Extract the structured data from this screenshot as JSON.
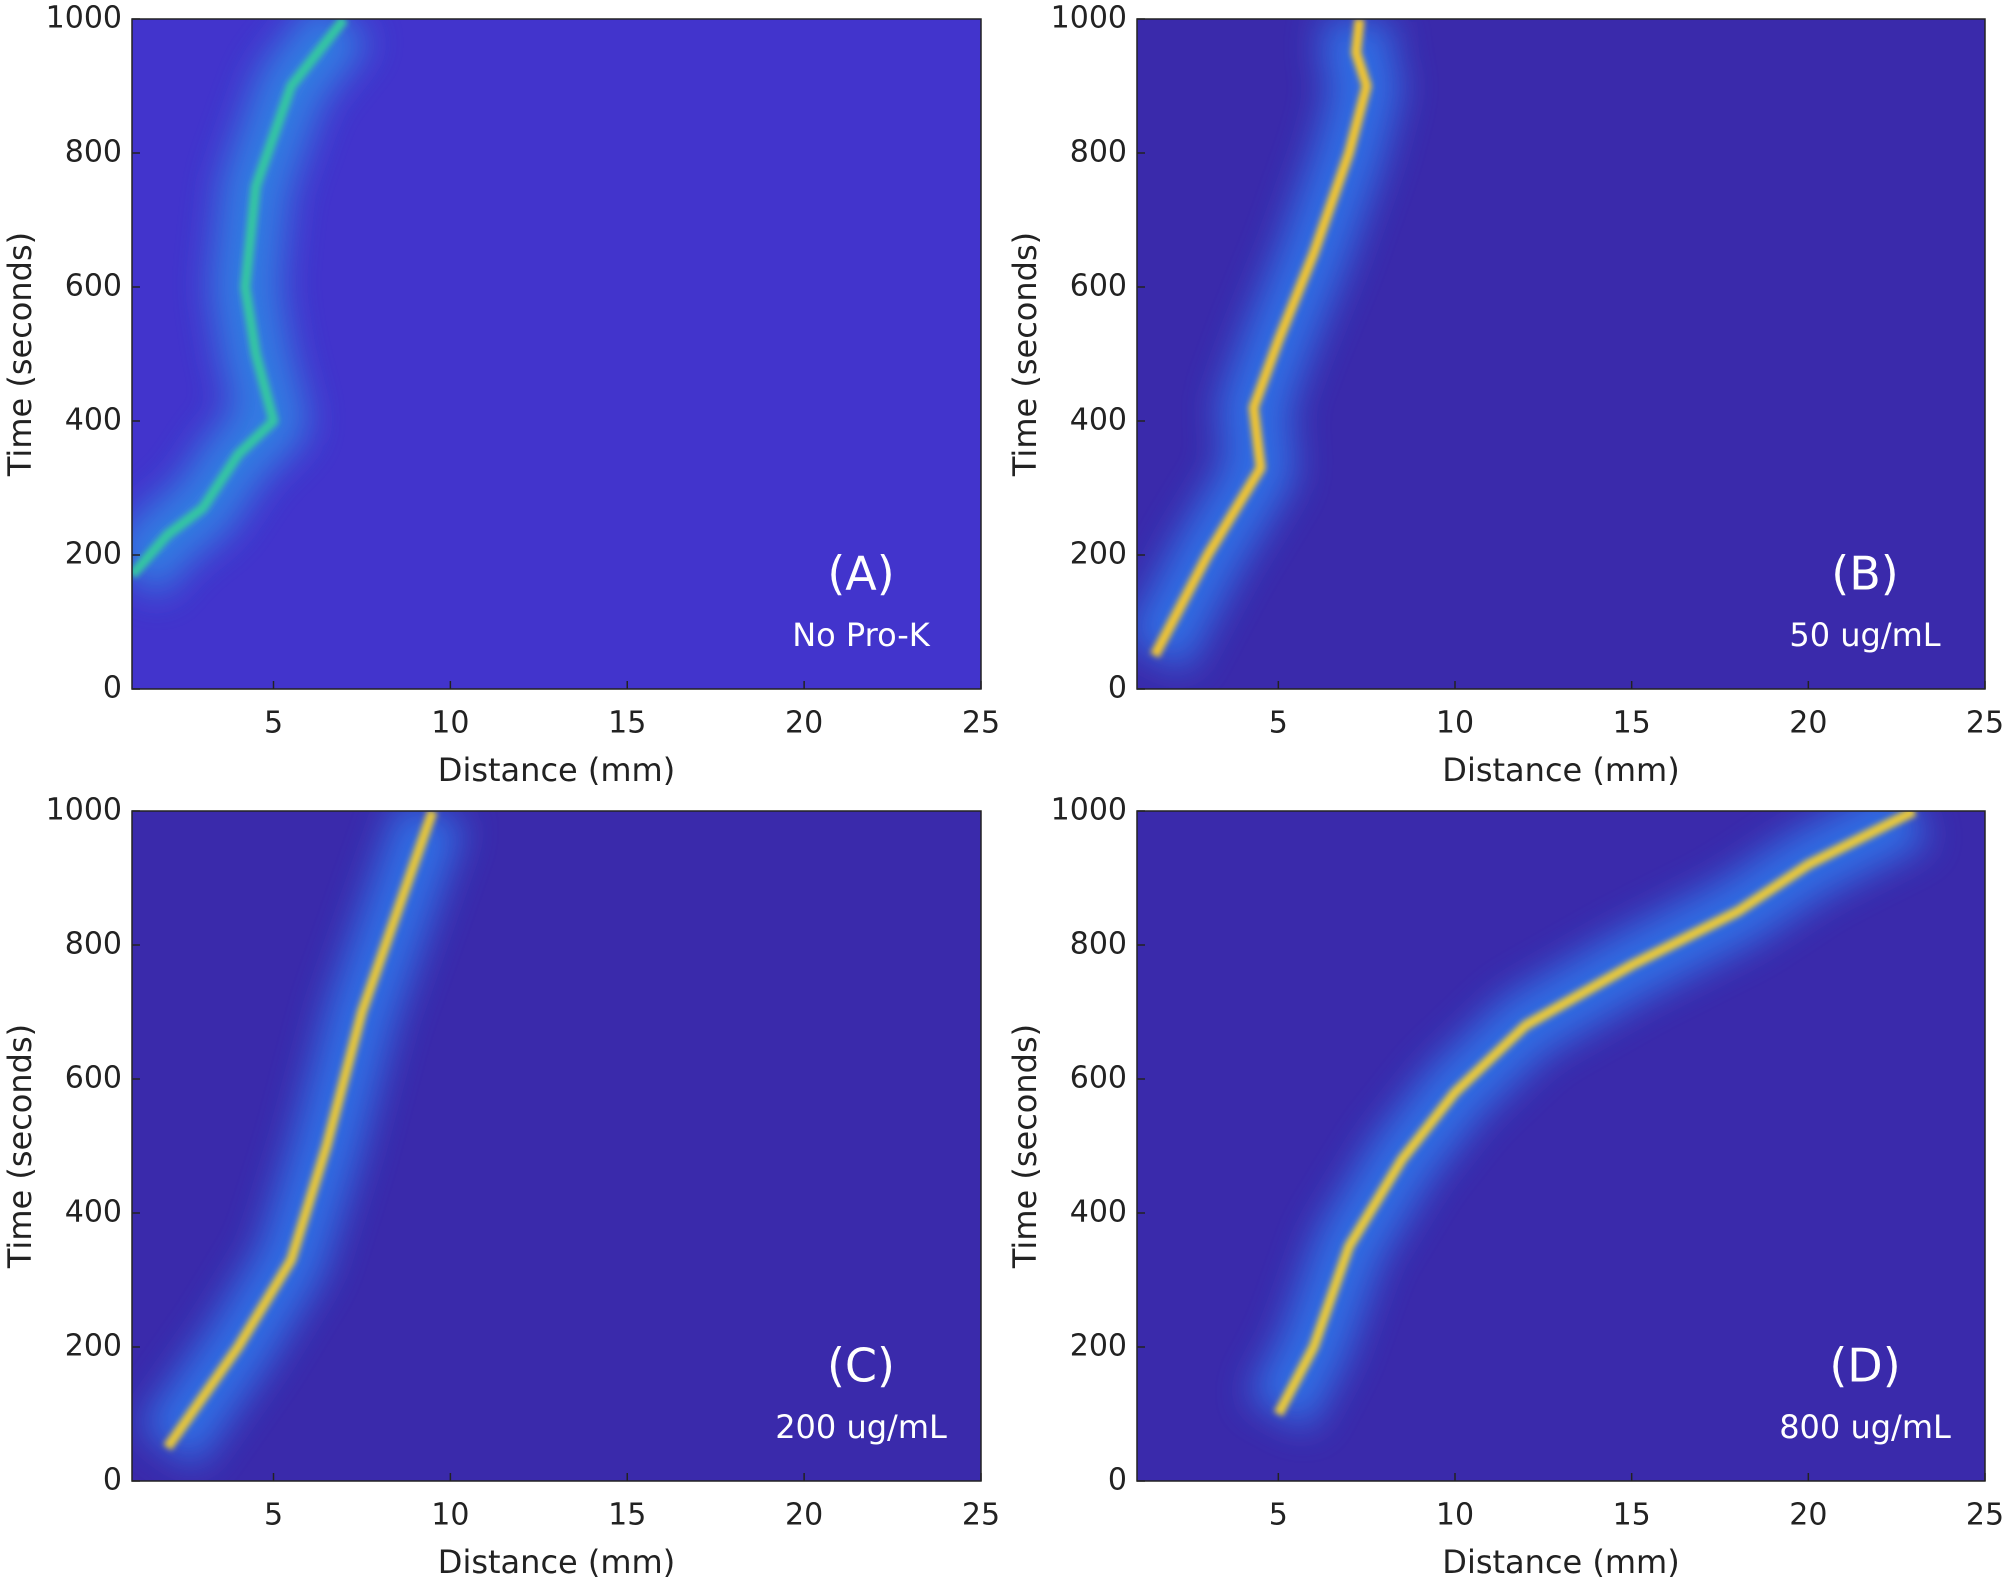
{
  "chart_data": [
    {
      "type": "heatmap",
      "label": "(A)",
      "sublabel": "No Pro-K",
      "xlabel": "Distance (mm)",
      "ylabel": "Time (seconds)",
      "x": [
        1,
        2,
        3,
        4,
        5,
        4.5,
        4.2,
        4.5,
        5.5,
        7
      ],
      "values": [
        170,
        230,
        270,
        350,
        400,
        500,
        600,
        750,
        900,
        1000
      ],
      "background": "#4234cc",
      "color": "#35c6a2",
      "glow_color": "#2f8ee8",
      "xlim": [
        1,
        25
      ],
      "ylim": [
        0,
        1000
      ],
      "xticks": [
        5,
        10,
        15,
        20,
        25
      ],
      "yticks": [
        0,
        200,
        400,
        600,
        800,
        1000
      ]
    },
    {
      "type": "heatmap",
      "label": "(B)",
      "sublabel": "50 ug/mL",
      "xlabel": "Distance (mm)",
      "ylabel": "Time (seconds)",
      "x": [
        1.5,
        3,
        4.5,
        4.3,
        5,
        6,
        7,
        7.5,
        7.2,
        7.3
      ],
      "values": [
        50,
        200,
        330,
        420,
        520,
        650,
        800,
        900,
        950,
        1000
      ],
      "background": "#3a2aab",
      "color": "#f1c531",
      "glow_color": "#2e7ef2",
      "xlim": [
        1,
        25
      ],
      "ylim": [
        0,
        1000
      ],
      "xticks": [
        5,
        10,
        15,
        20,
        25
      ],
      "yticks": [
        0,
        200,
        400,
        600,
        800,
        1000
      ]
    },
    {
      "type": "heatmap",
      "label": "(C)",
      "sublabel": "200 ug/mL",
      "xlabel": "Distance (mm)",
      "ylabel": "Time (seconds)",
      "x": [
        2,
        4,
        5.5,
        6.5,
        7.5,
        8.5,
        9.5
      ],
      "values": [
        50,
        200,
        330,
        500,
        700,
        850,
        1000
      ],
      "background": "#3a2aab",
      "color": "#e6c63a",
      "glow_color": "#2e7ef2",
      "xlim": [
        1,
        25
      ],
      "ylim": [
        0,
        1000
      ],
      "xticks": [
        5,
        10,
        15,
        20,
        25
      ],
      "yticks": [
        0,
        200,
        400,
        600,
        800,
        1000
      ]
    },
    {
      "type": "heatmap",
      "label": "(D)",
      "sublabel": "800 ug/mL",
      "xlabel": "Distance (mm)",
      "ylabel": "Time (seconds)",
      "x": [
        5,
        6,
        7,
        8.5,
        10,
        12,
        15,
        18,
        20,
        23
      ],
      "values": [
        100,
        200,
        350,
        480,
        580,
        680,
        770,
        850,
        920,
        1000
      ],
      "background": "#3a2aab",
      "color": "#e9c93a",
      "glow_color": "#2e7ef2",
      "xlim": [
        1,
        25
      ],
      "ylim": [
        0,
        1000
      ],
      "xticks": [
        5,
        10,
        15,
        20,
        25
      ],
      "yticks": [
        0,
        200,
        400,
        600,
        800,
        1000
      ]
    }
  ]
}
